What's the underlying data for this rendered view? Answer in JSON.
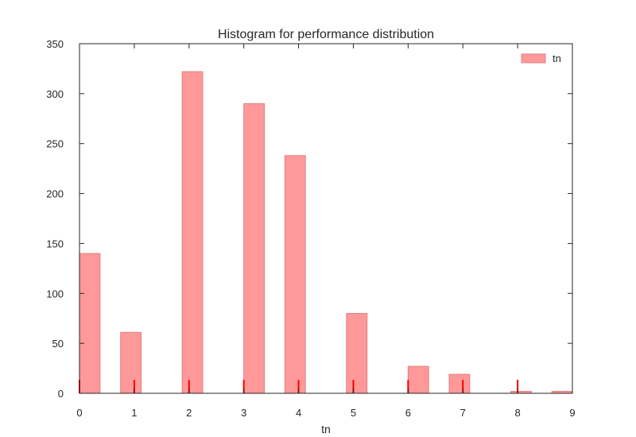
{
  "chart_data": {
    "type": "bar",
    "title": "Histogram for performance distribution",
    "xlabel": "tn",
    "ylabel": "",
    "xlim": [
      0,
      9
    ],
    "ylim": [
      0,
      350
    ],
    "xticks": [
      0,
      1,
      2,
      3,
      4,
      5,
      6,
      7,
      8,
      9
    ],
    "yticks": [
      0,
      50,
      100,
      150,
      200,
      250,
      300,
      350
    ],
    "grid": false,
    "legend": {
      "placement": "top-right",
      "entries": [
        "tn"
      ]
    },
    "series": [
      {
        "name": "tn",
        "color": "#ff9999",
        "edge_color": "#e08080",
        "bins": [
          {
            "x0": 0.0,
            "x1": 0.375,
            "count": 140
          },
          {
            "x0": 0.75,
            "x1": 1.125,
            "count": 61
          },
          {
            "x0": 1.875,
            "x1": 2.25,
            "count": 322
          },
          {
            "x0": 3.0,
            "x1": 3.375,
            "count": 290
          },
          {
            "x0": 3.75,
            "x1": 4.125,
            "count": 238
          },
          {
            "x0": 4.875,
            "x1": 5.25,
            "count": 80
          },
          {
            "x0": 6.0,
            "x1": 6.375,
            "count": 27
          },
          {
            "x0": 6.75,
            "x1": 7.125,
            "count": 19
          },
          {
            "x0": 7.875,
            "x1": 8.25,
            "count": 2
          },
          {
            "x0": 8.625,
            "x1": 9.0,
            "count": 2
          }
        ]
      }
    ],
    "rug": {
      "color": "#ff0000",
      "positions": [
        0,
        1,
        2,
        3,
        4,
        5,
        6,
        7,
        8
      ],
      "height": 17
    }
  }
}
